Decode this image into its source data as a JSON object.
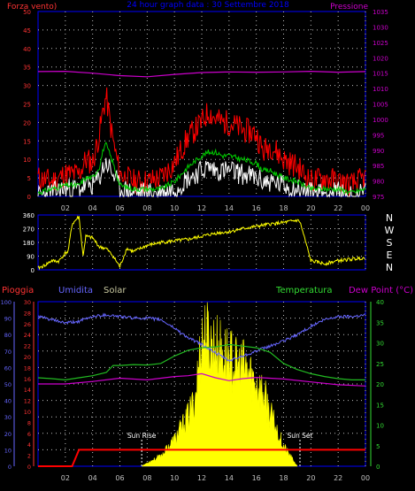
{
  "header": {
    "left_label": "Forza vento)",
    "title": "24 hour graph data : 30 Settembre 2018",
    "right_label": "Pressione"
  },
  "compass": [
    "N",
    "W",
    "S",
    "E",
    "N"
  ],
  "bottom_labels": {
    "pioggia": "Pioggia",
    "umidita": "Umidita",
    "solar": "Solar",
    "temperatura": "Temperatura",
    "dewpoint": "Dew Point (°C)",
    "sunrise": "Sun Rise",
    "sunset": "Sun Set"
  },
  "colors": {
    "wind_gust": "#ff0000",
    "wind_avg": "#00cc00",
    "wind_speed": "#ffffff",
    "pressure": "#cc00cc",
    "direction": "#ffff00",
    "humidity": "#6666ff",
    "temperature": "#22bb22",
    "dewpoint": "#cc00cc",
    "solar": "#ffff00",
    "rain": "#ff0000",
    "grid": "#c0c0c0",
    "axis_blue": "#0000ff"
  },
  "chart_data": [
    {
      "type": "line",
      "title": "24 hour graph data : 30 Settembre 2018",
      "x_ticks": [
        "02",
        "04",
        "06",
        "08",
        "10",
        "12",
        "14",
        "16",
        "18",
        "20",
        "22",
        "00"
      ],
      "y_left": {
        "label": "Forza vento)",
        "ticks": [
          0,
          5,
          10,
          15,
          20,
          25,
          30,
          35,
          40,
          45,
          50
        ],
        "range": [
          0,
          50
        ]
      },
      "y_right": {
        "label": "Pressione",
        "ticks": [
          975,
          980,
          985,
          990,
          995,
          1000,
          1005,
          1010,
          1015,
          1020,
          1025,
          1030,
          1035
        ],
        "range": [
          975,
          1035
        ]
      },
      "series": [
        {
          "name": "wind_gust",
          "axis": "left",
          "hours": [
            0,
            1,
            2,
            3,
            3.5,
            4,
            4.5,
            4.8,
            5,
            5.2,
            5.5,
            6,
            7,
            8,
            9,
            10,
            11,
            12,
            12.5,
            13,
            13.5,
            14,
            15,
            16,
            16.5,
            17,
            18,
            19,
            20,
            21,
            22,
            23,
            24
          ],
          "values": [
            5,
            4,
            6,
            6,
            10,
            9,
            17,
            24,
            27,
            22,
            15,
            6,
            4,
            4,
            5,
            9,
            16,
            20,
            23,
            21,
            20,
            20,
            18,
            17,
            12,
            14,
            10,
            8,
            4,
            5,
            4,
            3,
            5
          ]
        },
        {
          "name": "wind_avg",
          "axis": "left",
          "hours": [
            0,
            1,
            2,
            3,
            3.5,
            4,
            4.5,
            4.8,
            5,
            5.2,
            5.5,
            6,
            7,
            8,
            9,
            10,
            11,
            12,
            12.5,
            13,
            13.5,
            14,
            15,
            16,
            16.5,
            17,
            18,
            19,
            20,
            21,
            22,
            23,
            24
          ],
          "values": [
            1,
            2,
            3,
            3,
            5,
            5,
            8,
            13,
            14,
            12,
            9,
            3,
            2,
            2,
            2,
            4,
            8,
            11,
            12,
            12,
            11,
            11,
            10,
            9,
            7,
            7,
            5,
            4,
            2,
            2,
            2,
            1,
            2
          ]
        },
        {
          "name": "wind_speed",
          "axis": "left",
          "hours": [
            0,
            1,
            2,
            3,
            3.5,
            4,
            4.5,
            4.8,
            5,
            5.2,
            5.5,
            6,
            7,
            8,
            9,
            10,
            11,
            12,
            12.5,
            13,
            13.5,
            14,
            15,
            16,
            16.5,
            17,
            18,
            19,
            20,
            21,
            22,
            23,
            24
          ],
          "values": [
            0,
            1,
            2,
            2,
            3,
            3,
            5,
            8,
            9,
            8,
            6,
            2,
            1,
            1,
            1,
            2,
            5,
            7,
            8,
            7,
            7,
            7,
            6,
            5,
            4,
            4,
            3,
            2,
            1,
            1,
            1,
            0,
            1
          ]
        },
        {
          "name": "pressure",
          "axis": "right",
          "hours": [
            0,
            2,
            4,
            6,
            8,
            10,
            12,
            14,
            16,
            18,
            20,
            22,
            24
          ],
          "values": [
            1015.5,
            1015.6,
            1015.0,
            1014.2,
            1013.8,
            1014.6,
            1015.2,
            1015.4,
            1015.3,
            1015.4,
            1015.6,
            1015.3,
            1015.5
          ]
        }
      ]
    },
    {
      "type": "line",
      "y_left": {
        "ticks": [
          0,
          90,
          180,
          270,
          360
        ],
        "range": [
          0,
          360
        ]
      },
      "y_right": {
        "labels": [
          "N",
          "W",
          "S",
          "E",
          "N"
        ]
      },
      "series": [
        {
          "name": "wind_direction",
          "hours": [
            0,
            0.5,
            1,
            1.5,
            2,
            2.2,
            2.5,
            3,
            3.3,
            3.5,
            4,
            4.5,
            5,
            5.5,
            6,
            6.5,
            7,
            8,
            9,
            10,
            11,
            12,
            13,
            14,
            15,
            16,
            17,
            18,
            19,
            19.2,
            20,
            21,
            22,
            23,
            24
          ],
          "values": [
            10,
            30,
            60,
            55,
            110,
            120,
            300,
            350,
            90,
            220,
            210,
            150,
            140,
            90,
            20,
            140,
            120,
            160,
            180,
            190,
            200,
            220,
            240,
            250,
            270,
            285,
            300,
            310,
            325,
            315,
            60,
            40,
            60,
            70,
            80
          ]
        }
      ]
    },
    {
      "type": "line",
      "y_left_rain": {
        "label": "Pioggia",
        "ticks": [
          0,
          2,
          4,
          6,
          8,
          10,
          12,
          14,
          16,
          18,
          20,
          22,
          24,
          26,
          28,
          30
        ],
        "range": [
          0,
          30
        ]
      },
      "y_left_humidity": {
        "label": "Umidita",
        "ticks": [
          0,
          10,
          20,
          30,
          40,
          50,
          60,
          70,
          80,
          90,
          100
        ],
        "range": [
          0,
          100
        ]
      },
      "y_right_temp": {
        "label": "Temperatura",
        "ticks": [
          0,
          5,
          10,
          15,
          20,
          25,
          30,
          35,
          40
        ],
        "range": [
          0,
          40
        ]
      },
      "series": [
        {
          "name": "humidity",
          "axis": "humidity",
          "hours": [
            0,
            1,
            2,
            3,
            4,
            5,
            6,
            7,
            8,
            9,
            10,
            11,
            12,
            13,
            14,
            15,
            16,
            17,
            18,
            19,
            20,
            21,
            22,
            23,
            24
          ],
          "values": [
            91,
            89,
            87,
            88,
            91,
            92,
            91,
            90,
            90,
            89,
            84,
            78,
            74,
            69,
            64,
            67,
            70,
            73,
            76,
            80,
            85,
            89,
            91,
            91,
            92
          ]
        },
        {
          "name": "temperature",
          "axis": "temp",
          "hours": [
            0,
            1,
            2,
            3,
            4,
            5,
            5.5,
            6,
            7,
            8,
            9,
            10,
            11,
            12,
            13,
            14,
            15,
            16,
            17,
            18,
            19,
            20,
            21,
            22,
            23,
            24
          ],
          "values": [
            21.5,
            21.3,
            21.0,
            21.5,
            22.0,
            22.8,
            24.5,
            24.5,
            24.7,
            24.6,
            25.0,
            26.8,
            28.2,
            28.8,
            29.0,
            29.6,
            29.2,
            28.8,
            27.7,
            25.0,
            23.5,
            22.5,
            21.8,
            21.3,
            21.0,
            21.0
          ]
        },
        {
          "name": "dew_point",
          "axis": "temp",
          "hours": [
            0,
            2,
            4,
            6,
            8,
            10,
            11,
            12,
            13,
            14,
            15,
            16,
            18,
            20,
            22,
            24
          ],
          "values": [
            20.0,
            20.0,
            20.6,
            21.4,
            21.0,
            21.8,
            22.0,
            22.5,
            21.5,
            20.8,
            21.3,
            21.6,
            21.2,
            20.5,
            19.8,
            19.5
          ]
        },
        {
          "name": "solar",
          "axis": "temp",
          "hours": [
            7.6,
            8,
            9,
            10,
            11,
            11.5,
            12,
            12.3,
            12.6,
            13,
            13.5,
            14,
            14.5,
            15,
            15.5,
            16,
            16.5,
            17,
            17.5,
            18,
            18.5,
            19
          ],
          "values": [
            0,
            1,
            3,
            8,
            15,
            20,
            38,
            40,
            37,
            36,
            34,
            33,
            30,
            30,
            28,
            25,
            22,
            16,
            11,
            6,
            3,
            0
          ]
        },
        {
          "name": "rain",
          "axis": "rain",
          "hours": [
            0,
            2.5,
            3,
            24
          ],
          "values": [
            0,
            0,
            3,
            3
          ]
        }
      ],
      "annotations": [
        {
          "text": "Sun Rise",
          "hour": 7.6
        },
        {
          "text": "Sun Set",
          "hour": 19.2
        }
      ]
    }
  ]
}
